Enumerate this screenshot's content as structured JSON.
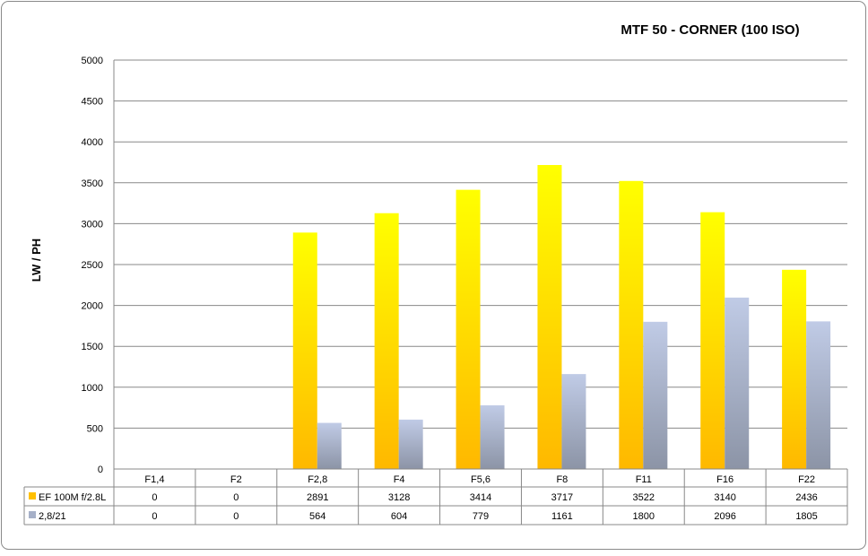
{
  "chart_data": {
    "type": "bar",
    "title": "MTF 50 - CORNER (100 ISO)",
    "xlabel": "",
    "ylabel": "LW / PH",
    "ylim": [
      0,
      5000
    ],
    "yticks": [
      "0",
      "500",
      "1000",
      "1500",
      "2000",
      "2500",
      "3000",
      "3500",
      "4000",
      "4500",
      "5000"
    ],
    "grid": true,
    "legend": "data-table",
    "categories": [
      "F1,4",
      "F2",
      "F2,8",
      "F4",
      "F5,6",
      "F8",
      "F11",
      "F16",
      "F22"
    ],
    "series": [
      {
        "name": "EF 100M f/2.8L",
        "values": [
          0,
          0,
          2891,
          3128,
          3414,
          3717,
          3522,
          3140,
          2436
        ],
        "color": "#ffc000"
      },
      {
        "name": "2,8/21",
        "values": [
          0,
          0,
          564,
          604,
          779,
          1161,
          1800,
          2096,
          1805
        ],
        "color": "#a6b0c8"
      }
    ]
  }
}
